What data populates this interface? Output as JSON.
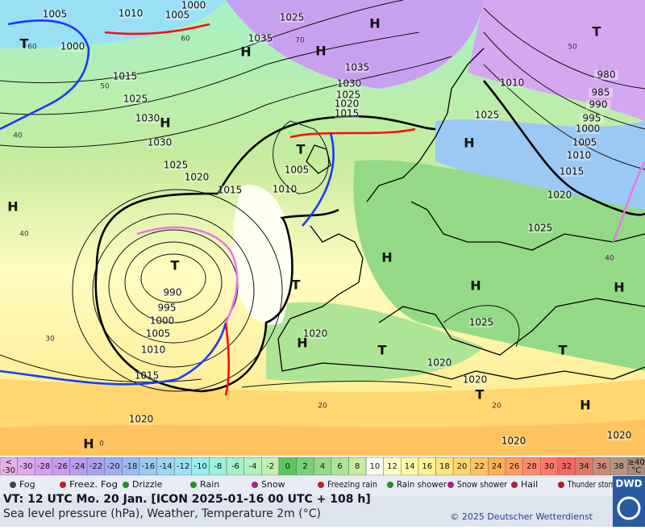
{
  "map": {
    "pressure_labels": [
      1005,
      1010,
      1005,
      1000,
      1025,
      1035,
      1000,
      1015,
      1025,
      1030,
      1030,
      1025,
      1020,
      1015,
      1035,
      1030,
      1025,
      1020,
      1015,
      1005,
      1010,
      1010,
      1025,
      980,
      985,
      990,
      995,
      1000,
      1005,
      1010,
      1015,
      1020,
      1025,
      990,
      995,
      1000,
      1005,
      1010,
      1015,
      1020,
      1020,
      1020,
      1025,
      1020,
      1020,
      1020
    ],
    "centers": [
      "H",
      "H",
      "H",
      "H",
      "H",
      "H",
      "T",
      "T",
      "T",
      "H",
      "H",
      "H",
      "H",
      "T",
      "T",
      "T",
      "H",
      "H",
      "T",
      "T"
    ],
    "temperature_labels": [
      60,
      50,
      40,
      40,
      30,
      20,
      0,
      60,
      70,
      50,
      40,
      20
    ]
  },
  "color_scale": {
    "low_cap": [
      "<",
      "-30"
    ],
    "values": [
      -30,
      -28,
      -26,
      -24,
      -22,
      -20,
      -18,
      -16,
      -14,
      -12,
      -10,
      -8,
      -6,
      -4,
      -2,
      0,
      2,
      4,
      6,
      8,
      10,
      12,
      14,
      16,
      18,
      20,
      22,
      24,
      26,
      28,
      30,
      32,
      34,
      36,
      38
    ],
    "colors": [
      "#e0a8ec",
      "#d4a0f0",
      "#c69cf0",
      "#b89cf0",
      "#aaa0f2",
      "#9eacf4",
      "#9cbaf4",
      "#9cc8f4",
      "#9cd6f4",
      "#9ce2f2",
      "#9ceeee",
      "#9cf0dc",
      "#a6f0cc",
      "#b4f0be",
      "#c2f0b2",
      "#5cc65c",
      "#78d078",
      "#94da86",
      "#aee496",
      "#c6ec9e",
      "#fffff2",
      "#ffffcc",
      "#fffcaa",
      "#fff494",
      "#ffe680",
      "#ffd670",
      "#ffc460",
      "#ffb050",
      "#ff9c60",
      "#ff8a6c",
      "#ff7a6c",
      "#f06a60",
      "#e07868",
      "#cc8c7c",
      "#b89484"
    ],
    "low_color": "#e6b0e6",
    "high_cap": [
      "≥40",
      "°C"
    ],
    "high_color": "#a88a7c"
  },
  "legend": [
    "Fog",
    "Freez. Fog",
    "Drizzle",
    "Rain",
    "Snow",
    "Freezing rain",
    "Rain shower",
    "Snow shower",
    "Hail",
    "Thunder storm"
  ],
  "footer": {
    "valid_time": "VT: 12 UTC Mo.  20 Jan. [ICON 2025-01-16  00 UTC + 108 h]",
    "description": "Sea level pressure (hPa), Weather, Temperature 2m (°C)",
    "copyright": "© 2025 Deutscher Wetterdienst",
    "logo": "DWD"
  }
}
